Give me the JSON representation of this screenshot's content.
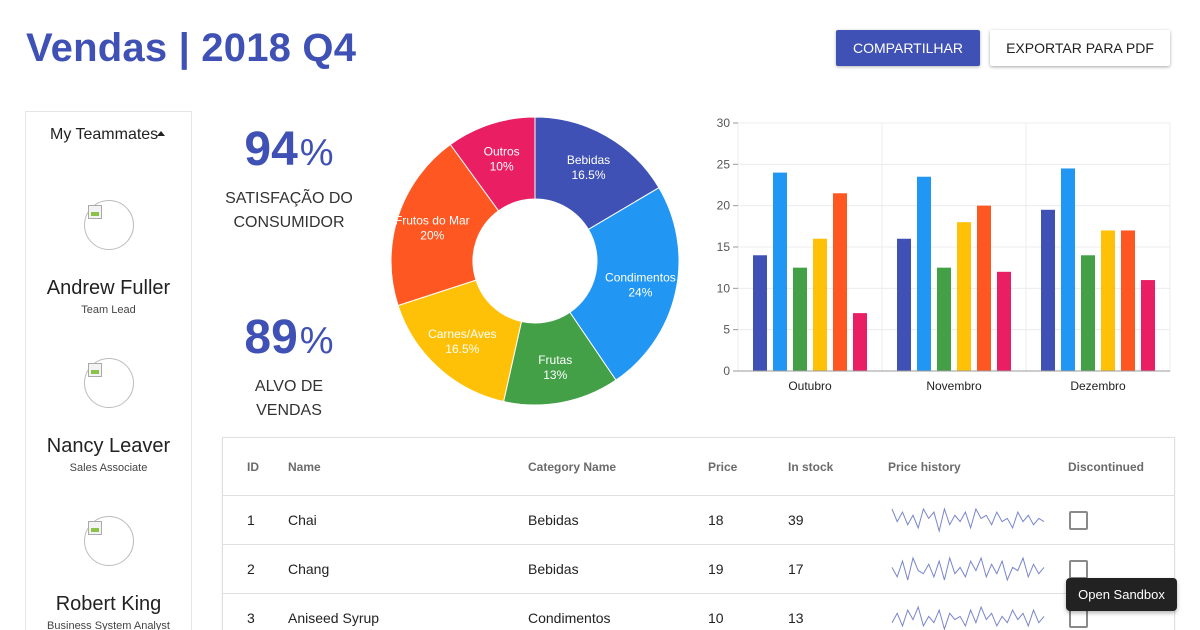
{
  "header": {
    "title": "Vendas | 2018 Q4",
    "share_label": "Compartilhar",
    "export_label": "Exportar para PDF"
  },
  "teammates": {
    "heading": "My Teammates",
    "people": [
      {
        "name": "Andrew Fuller",
        "role": "Team Lead"
      },
      {
        "name": "Nancy Leaver",
        "role": "Sales Associate"
      },
      {
        "name": "Robert King",
        "role": "Business System Analyst"
      }
    ]
  },
  "kpis": [
    {
      "value": "94",
      "unit": "%",
      "label_line1": "Satisfação do",
      "label_line2": "consumidor"
    },
    {
      "value": "89",
      "unit": "%",
      "label_line1": "Alvo de",
      "label_line2": "vendas"
    }
  ],
  "chart_data": [
    {
      "type": "pie",
      "hole": true,
      "slices": [
        {
          "label": "Bebidas",
          "value": 16.5,
          "text": "16.5%",
          "color": "#3f51b5"
        },
        {
          "label": "Condimentos",
          "value": 24,
          "text": "24%",
          "color": "#2196f3"
        },
        {
          "label": "Frutas",
          "value": 13,
          "text": "13%",
          "color": "#43a047"
        },
        {
          "label": "Carnes/Aves",
          "value": 16.5,
          "text": "16.5%",
          "color": "#ffc107"
        },
        {
          "label": "Frutos do Mar",
          "value": 20,
          "text": "20%",
          "color": "#ff5722"
        },
        {
          "label": "Outros",
          "value": 10,
          "text": "10%",
          "color": "#e91e63"
        }
      ]
    },
    {
      "type": "bar",
      "categories": [
        "Outubro",
        "Novembro",
        "Dezembro"
      ],
      "ylim": [
        0,
        30
      ],
      "yticks": [
        "0",
        "5",
        "10",
        "15",
        "20",
        "25",
        "30"
      ],
      "grid": true,
      "series": [
        {
          "color": "#3f51b5",
          "values": [
            14,
            16,
            19.5
          ]
        },
        {
          "color": "#2196f3",
          "values": [
            24,
            23.5,
            24.5
          ]
        },
        {
          "color": "#43a047",
          "values": [
            12.5,
            12.5,
            14
          ]
        },
        {
          "color": "#ffc107",
          "values": [
            16,
            18,
            17
          ]
        },
        {
          "color": "#ff5722",
          "values": [
            21.5,
            20,
            17
          ]
        },
        {
          "color": "#e91e63",
          "values": [
            7,
            12,
            11
          ]
        }
      ]
    }
  ],
  "table": {
    "columns": [
      "ID",
      "Name",
      "Category Name",
      "Price",
      "In stock",
      "Price history",
      "Discontinued"
    ],
    "rows": [
      {
        "id": "1",
        "name": "Chai",
        "category": "Bebidas",
        "price": "18",
        "stock": "39",
        "history": [
          9,
          5,
          8,
          4,
          7,
          3,
          9,
          6,
          8,
          2,
          9,
          4,
          7,
          5,
          8,
          3,
          9,
          6,
          7,
          4,
          8,
          5,
          6,
          3,
          8,
          5,
          7,
          4,
          6,
          5
        ]
      },
      {
        "id": "2",
        "name": "Chang",
        "category": "Bebidas",
        "price": "19",
        "stock": "17",
        "history": [
          6,
          3,
          8,
          2,
          9,
          5,
          4,
          7,
          3,
          8,
          2,
          9,
          4,
          6,
          3,
          8,
          5,
          9,
          3,
          7,
          4,
          8,
          2,
          6,
          5,
          9,
          3,
          7,
          4,
          6
        ]
      },
      {
        "id": "3",
        "name": "Aniseed Syrup",
        "category": "Condimentos",
        "price": "10",
        "stock": "13",
        "history": [
          4,
          7,
          3,
          8,
          5,
          9,
          3,
          6,
          4,
          8,
          2,
          7,
          5,
          6,
          3,
          8,
          4,
          9,
          5,
          7,
          3,
          6,
          4,
          8,
          5,
          7,
          3,
          8,
          4,
          6
        ]
      }
    ]
  },
  "sandbox_label": "Open Sandbox"
}
